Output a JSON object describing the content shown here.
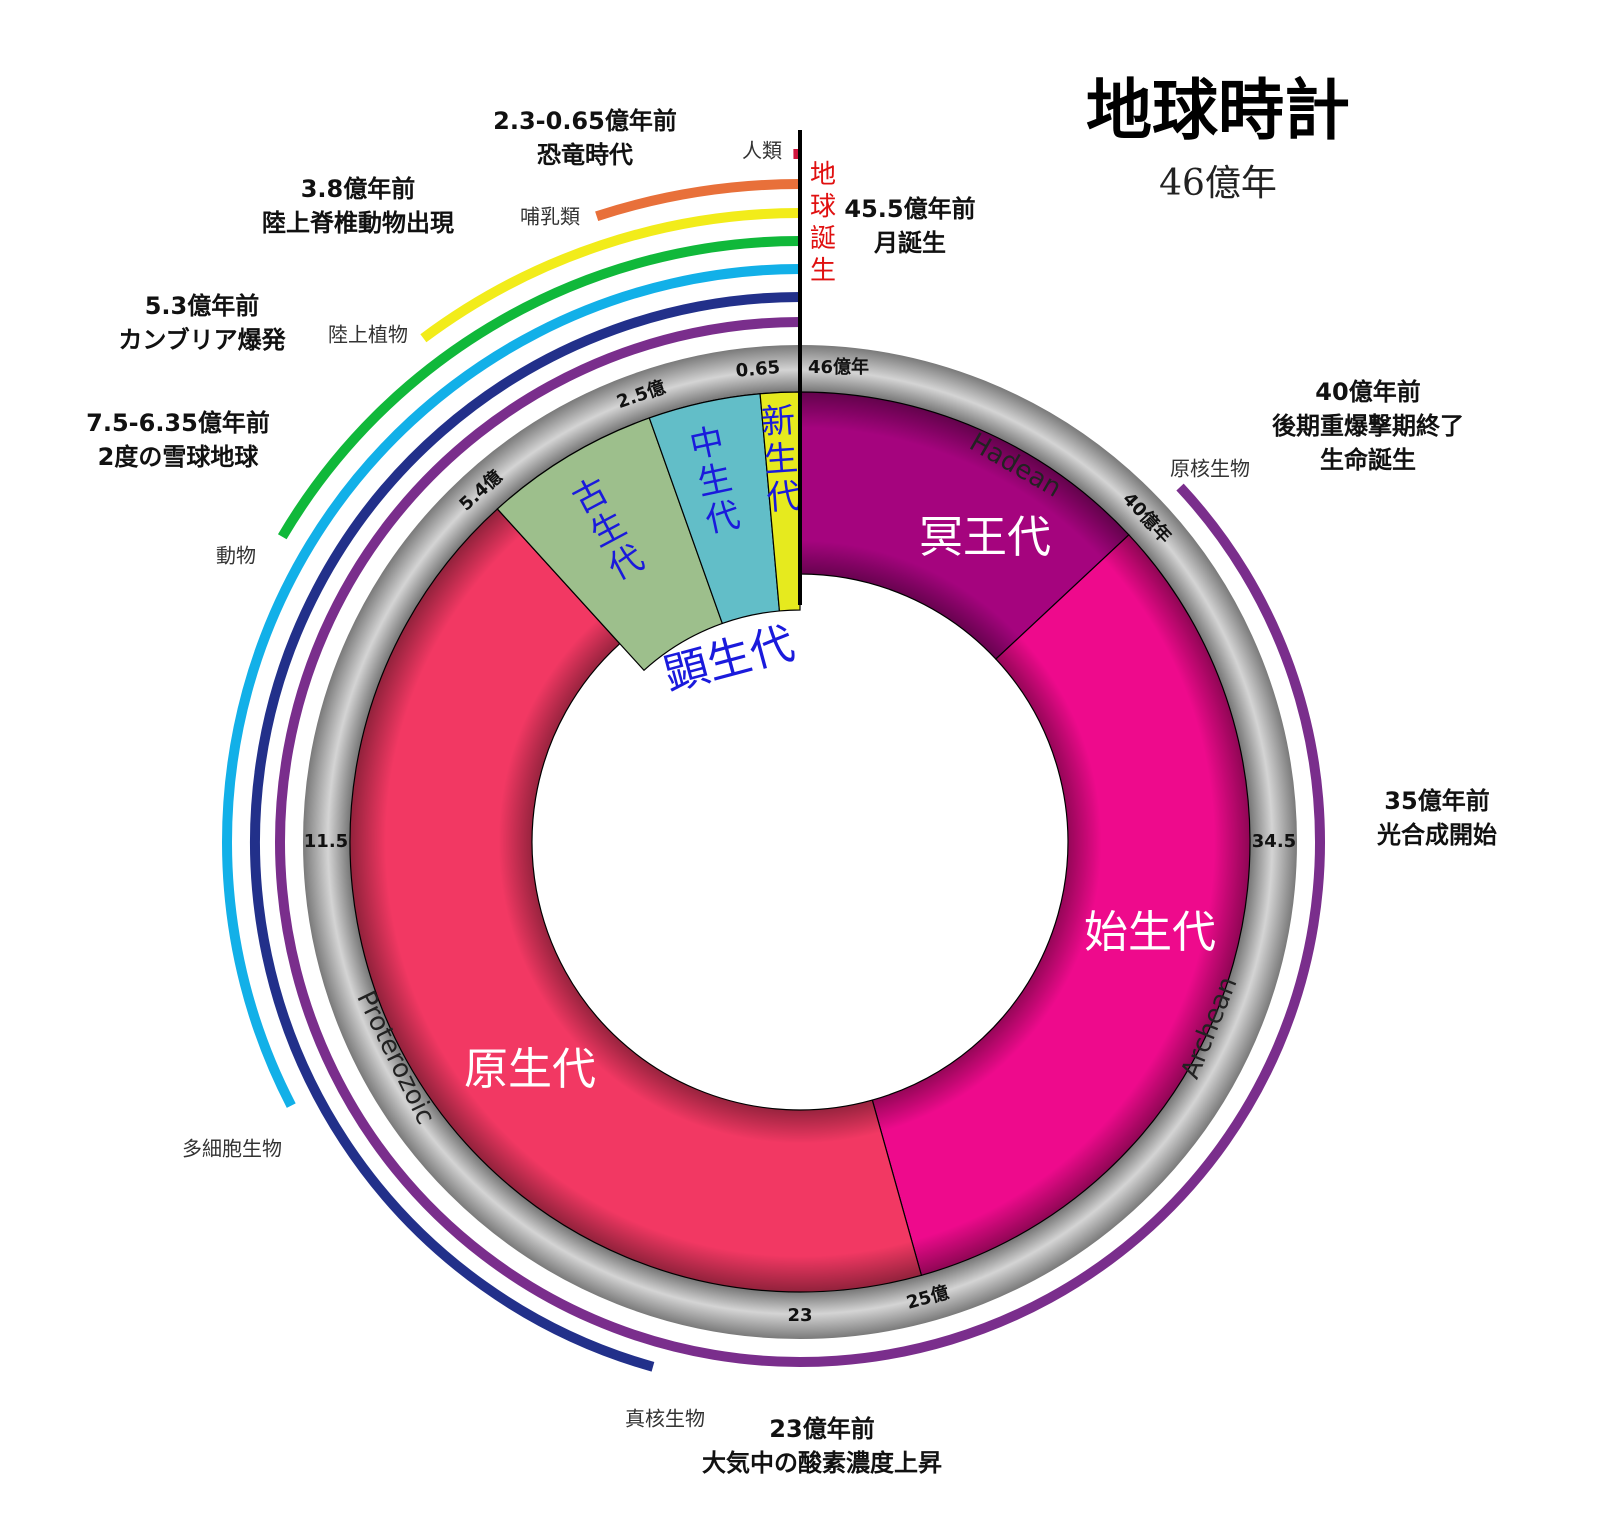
{
  "title": "地球時計",
  "subtitle": "46億年",
  "range": [
    0,
    46
  ],
  "origin_label": "地球誕生",
  "ring_ticks": [
    {
      "value": 46,
      "label": "46億年"
    },
    {
      "value": 40,
      "label": "40億年"
    },
    {
      "value": 34.5,
      "label": "34.5"
    },
    {
      "value": 25,
      "label": "25億"
    },
    {
      "value": 23,
      "label": "23"
    },
    {
      "value": 11.5,
      "label": "11.5"
    },
    {
      "value": 5.4,
      "label": "5.4億"
    },
    {
      "value": 2.5,
      "label": "2.5億"
    },
    {
      "value": 0.65,
      "label": "0.65"
    }
  ],
  "eons": [
    {
      "name": "冥王代",
      "english": "Hadean",
      "from": 46,
      "color": "#a5047e"
    },
    {
      "name": "始生代",
      "english": "Archean",
      "from": 40,
      "color": "#ee0a8c"
    },
    {
      "name": "原生代",
      "english": "Proterozoic",
      "from": 25,
      "color": "#f23863"
    },
    {
      "name": "顕生代",
      "from": 5.4,
      "color": "#ffffff"
    }
  ],
  "eras": [
    {
      "name": "古生代",
      "from": 5.4,
      "color": "#9dbf8c"
    },
    {
      "name": "中生代",
      "from": 2.5,
      "color": "#62bec8"
    },
    {
      "name": "新生代",
      "from": 0.65,
      "color": "#e6ea1e"
    }
  ],
  "life": [
    {
      "label": "原核生物",
      "from": 40,
      "color": "#7a2e8c"
    },
    {
      "label": "真核生物",
      "from": 21,
      "color": "#22308a"
    },
    {
      "label": "多細胞生物",
      "from": 15,
      "color": "#12b0e8"
    },
    {
      "label": "動物",
      "from": 7.6,
      "color": "#10b83a"
    },
    {
      "label": "陸上植物",
      "from": 4.7,
      "color": "#f2ec1a"
    },
    {
      "label": "哺乳類",
      "from": 2.3,
      "color": "#e8703a"
    },
    {
      "label": "人類",
      "from": 0.07,
      "color": "#d0143c"
    }
  ],
  "events": [
    [
      "2.3-0.65億年前",
      "恐竜時代"
    ],
    [
      "3.8億年前",
      "陸上脊椎動物出現"
    ],
    [
      "5.3億年前",
      "カンブリア爆発"
    ],
    [
      "7.5-6.35億年前",
      "2度の雪球地球"
    ],
    [
      "45.5億年前",
      "月誕生"
    ],
    [
      "40億年前",
      "後期重爆撃期終了",
      "生命誕生"
    ],
    [
      "35億年前",
      "光合成開始"
    ],
    [
      "23億年前",
      "大気中の酸素濃度上昇"
    ]
  ]
}
